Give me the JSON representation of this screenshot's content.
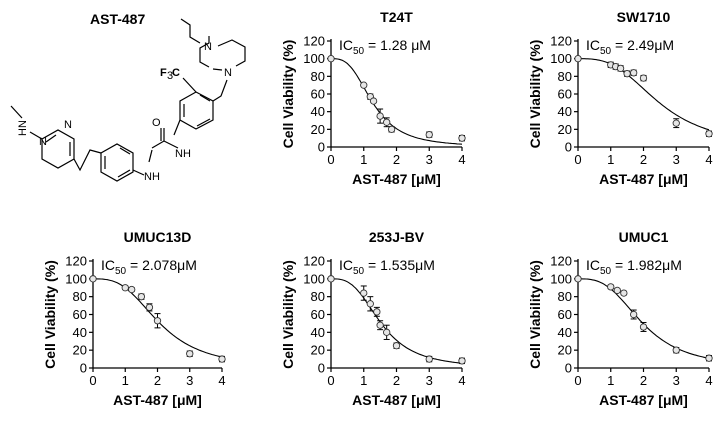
{
  "compound": {
    "name": "AST-487",
    "atom_labels": {
      "cf3_f": "F",
      "cf3_sub": "3",
      "cf3_c": "C",
      "nh1": "NH",
      "nh2": "NH",
      "o": "O",
      "n1": "N",
      "n2": "N"
    }
  },
  "chart_data": [
    {
      "type": "scatter",
      "title": "T24T",
      "annotation": {
        "prefix": "IC",
        "sub": "50",
        "value": " = 1.28 ",
        "unit": "μM"
      },
      "xlabel": "AST-487 [μM]",
      "ylabel": "Cell Viability (%)",
      "xlim": [
        0,
        4
      ],
      "ylim": [
        0,
        120
      ],
      "xticks": [
        0,
        1,
        2,
        3,
        4
      ],
      "yticks": [
        0,
        20,
        40,
        60,
        80,
        100,
        120
      ],
      "ic50": 1.28,
      "points": [
        {
          "x": 0,
          "y": 100,
          "err": 0
        },
        {
          "x": 1,
          "y": 70,
          "err": 0
        },
        {
          "x": 1.2,
          "y": 57,
          "err": 3
        },
        {
          "x": 1.3,
          "y": 52,
          "err": 0
        },
        {
          "x": 1.5,
          "y": 35,
          "err": 8
        },
        {
          "x": 1.7,
          "y": 28,
          "err": 5
        },
        {
          "x": 1.85,
          "y": 20,
          "err": 3
        },
        {
          "x": 3,
          "y": 14,
          "err": 3
        },
        {
          "x": 4,
          "y": 10,
          "err": 3
        }
      ]
    },
    {
      "type": "scatter",
      "title": "SW1710",
      "annotation": {
        "prefix": "IC",
        "sub": "50",
        "value": " = 2.49",
        "unit": "μM"
      },
      "xlabel": "AST-487 [μM]",
      "ylabel": "Cell Viability (%)",
      "xlim": [
        0,
        4
      ],
      "ylim": [
        0,
        120
      ],
      "xticks": [
        0,
        1,
        2,
        3,
        4
      ],
      "yticks": [
        0,
        20,
        40,
        60,
        80,
        100,
        120
      ],
      "ic50": 2.49,
      "points": [
        {
          "x": 0,
          "y": 100,
          "err": 0
        },
        {
          "x": 1,
          "y": 93,
          "err": 3
        },
        {
          "x": 1.15,
          "y": 91,
          "err": 3
        },
        {
          "x": 1.3,
          "y": 89,
          "err": 3
        },
        {
          "x": 1.5,
          "y": 83,
          "err": 3
        },
        {
          "x": 1.7,
          "y": 84,
          "err": 3
        },
        {
          "x": 2,
          "y": 78,
          "err": 3
        },
        {
          "x": 3,
          "y": 27,
          "err": 5
        },
        {
          "x": 4,
          "y": 15,
          "err": 3
        }
      ]
    },
    {
      "type": "scatter",
      "title": "UMUC13D",
      "annotation": {
        "prefix": "IC",
        "sub": "50",
        "value": " = 2.078",
        "unit": "μM"
      },
      "xlabel": "AST-487 [μM]",
      "ylabel": "Cell Viability (%)",
      "xlim": [
        0,
        4
      ],
      "ylim": [
        0,
        120
      ],
      "xticks": [
        0,
        1,
        2,
        3,
        4
      ],
      "yticks": [
        0,
        20,
        40,
        60,
        80,
        100,
        120
      ],
      "ic50": 2.078,
      "points": [
        {
          "x": 0,
          "y": 100,
          "err": 0
        },
        {
          "x": 1,
          "y": 90,
          "err": 2
        },
        {
          "x": 1.2,
          "y": 88,
          "err": 2
        },
        {
          "x": 1.5,
          "y": 80,
          "err": 3
        },
        {
          "x": 1.75,
          "y": 68,
          "err": 4
        },
        {
          "x": 2,
          "y": 53,
          "err": 8
        },
        {
          "x": 3,
          "y": 16,
          "err": 3
        },
        {
          "x": 4,
          "y": 10,
          "err": 3
        }
      ]
    },
    {
      "type": "scatter",
      "title": "253J-BV",
      "annotation": {
        "prefix": "IC",
        "sub": "50",
        "value": " = 1.535",
        "unit": "μM"
      },
      "xlabel": "AST-487 [μM]",
      "ylabel": "Cell Viability (%)",
      "xlim": [
        0,
        4
      ],
      "ylim": [
        0,
        120
      ],
      "xticks": [
        0,
        1,
        2,
        3,
        4
      ],
      "yticks": [
        0,
        20,
        40,
        60,
        80,
        100,
        120
      ],
      "ic50": 1.535,
      "points": [
        {
          "x": 0,
          "y": 100,
          "err": 0
        },
        {
          "x": 1,
          "y": 84,
          "err": 8
        },
        {
          "x": 1.2,
          "y": 72,
          "err": 8
        },
        {
          "x": 1.4,
          "y": 63,
          "err": 5
        },
        {
          "x": 1.5,
          "y": 48,
          "err": 5
        },
        {
          "x": 1.7,
          "y": 40,
          "err": 8
        },
        {
          "x": 2,
          "y": 25,
          "err": 3
        },
        {
          "x": 3,
          "y": 10,
          "err": 3
        },
        {
          "x": 4,
          "y": 8,
          "err": 3
        }
      ]
    },
    {
      "type": "scatter",
      "title": "UMUC1",
      "annotation": {
        "prefix": "IC",
        "sub": "50",
        "value": " = 1.982",
        "unit": "μM"
      },
      "xlabel": "AST-487 [μM]",
      "ylabel": "Cell Viability (%)",
      "xlim": [
        0,
        4
      ],
      "ylim": [
        0,
        120
      ],
      "xticks": [
        0,
        1,
        2,
        3,
        4
      ],
      "yticks": [
        0,
        20,
        40,
        60,
        80,
        100,
        120
      ],
      "ic50": 1.982,
      "points": [
        {
          "x": 0,
          "y": 100,
          "err": 0
        },
        {
          "x": 1,
          "y": 91,
          "err": 2
        },
        {
          "x": 1.2,
          "y": 87,
          "err": 2
        },
        {
          "x": 1.4,
          "y": 84,
          "err": 2
        },
        {
          "x": 1.7,
          "y": 60,
          "err": 5
        },
        {
          "x": 2,
          "y": 46,
          "err": 5
        },
        {
          "x": 3,
          "y": 20,
          "err": 3
        },
        {
          "x": 4,
          "y": 11,
          "err": 3
        }
      ]
    }
  ]
}
